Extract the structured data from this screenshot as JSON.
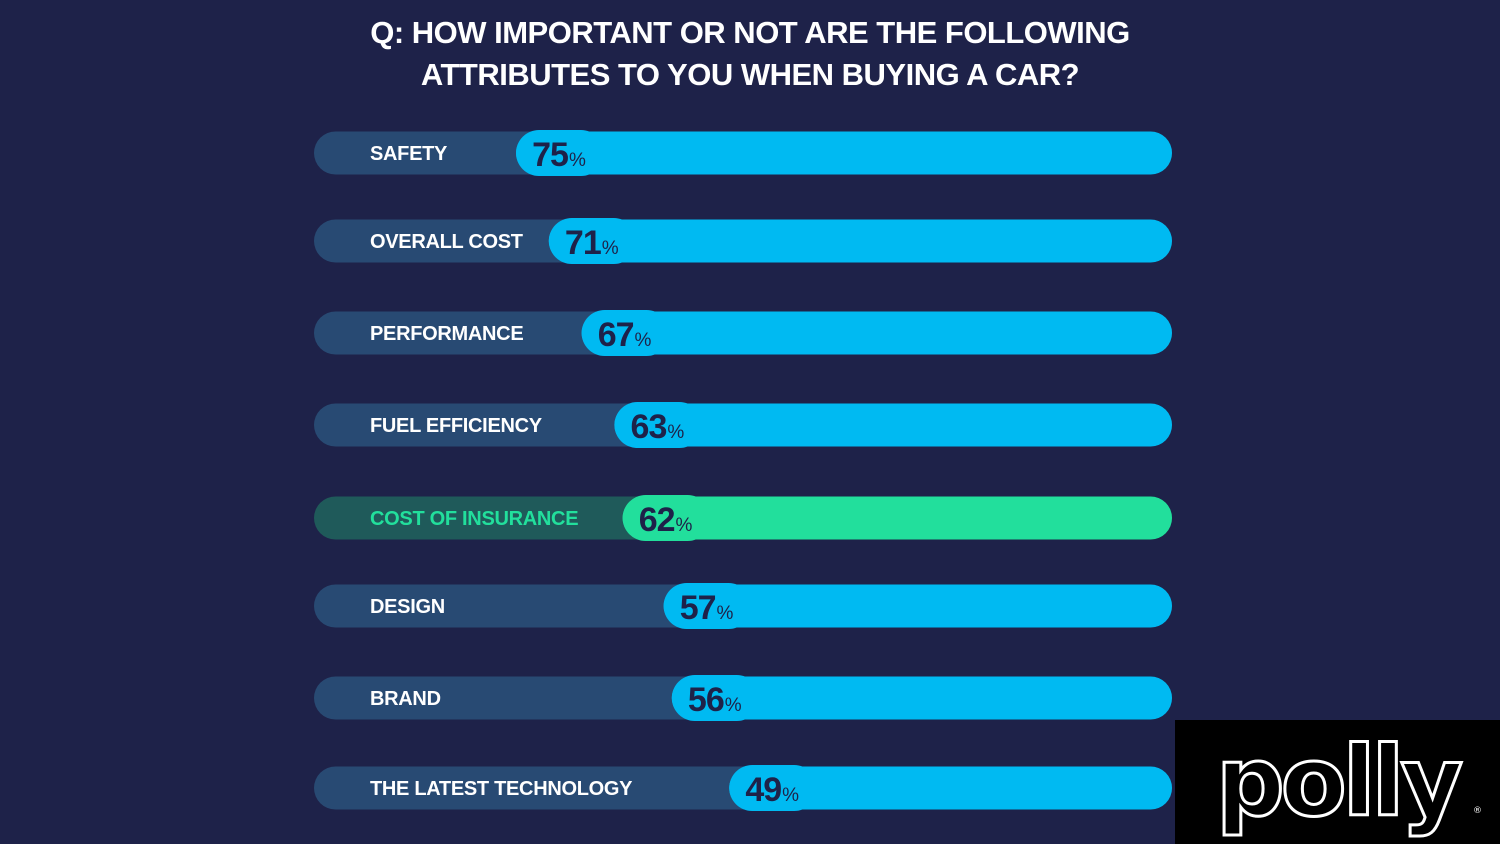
{
  "title": {
    "line1": "Q: HOW IMPORTANT OR NOT ARE THE FOLLOWING",
    "line2": "ATTRIBUTES TO YOU WHEN BUYING A CAR?"
  },
  "colors": {
    "background": "#1e2249",
    "track": "#284a73",
    "bar": "#00baf2",
    "highlight_bar": "#22df9c",
    "highlight_track": "#1f5a5a",
    "highlight_label": "#22df9c",
    "label": "#ffffff",
    "value_text": "#1e2249"
  },
  "chart_data": {
    "type": "bar",
    "orientation": "horizontal",
    "title": "Q: HOW IMPORTANT OR NOT ARE THE FOLLOWING ATTRIBUTES TO YOU WHEN BUYING A CAR?",
    "categories": [
      "SAFETY",
      "OVERALL COST",
      "PERFORMANCE",
      "FUEL EFFICIENCY",
      "COST OF INSURANCE",
      "DESIGN",
      "BRAND",
      "THE LATEST TECHNOLOGY"
    ],
    "values": [
      75,
      71,
      67,
      63,
      62,
      57,
      56,
      49
    ],
    "value_suffix": "%",
    "highlighted": [
      "COST OF INSURANCE"
    ],
    "xlim": [
      0,
      100
    ],
    "xlabel": "",
    "ylabel": "",
    "grid": false
  },
  "logo": {
    "text": "polly",
    "icon": "polly-logo",
    "registered_mark": "®"
  }
}
